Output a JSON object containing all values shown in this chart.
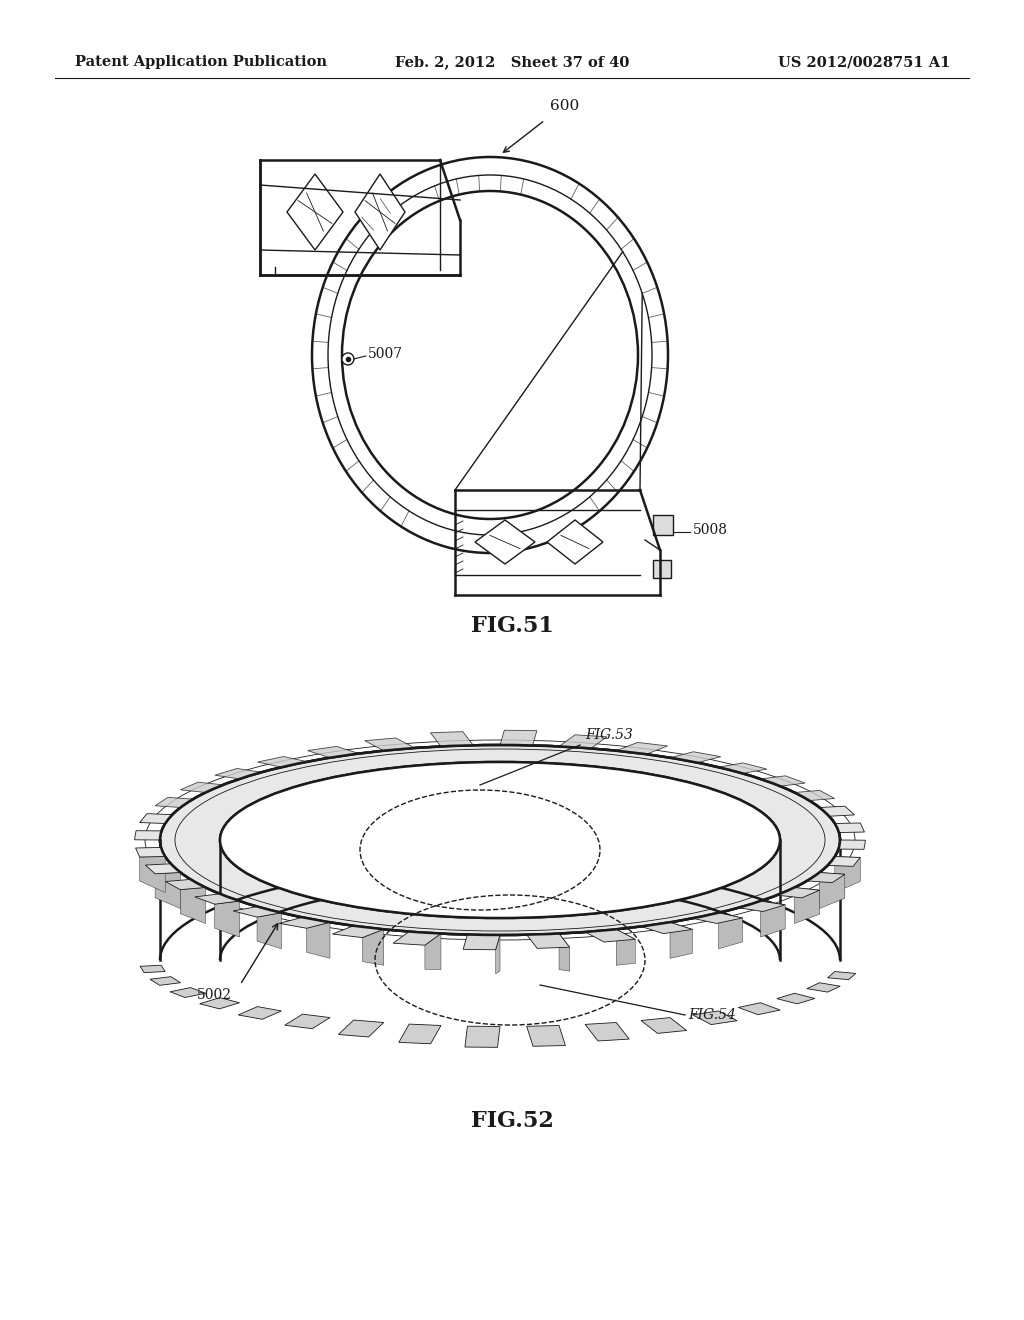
{
  "background_color": "#ffffff",
  "header": {
    "left_text": "Patent Application Publication",
    "center_text": "Feb. 2, 2012   Sheet 37 of 40",
    "right_text": "US 2012/0028751 A1",
    "fontsize": 10.5
  },
  "line_color": "#1a1a1a",
  "text_color": "#1a1a1a",
  "fig_label_fontsize": 15,
  "annot_fontsize": 10
}
